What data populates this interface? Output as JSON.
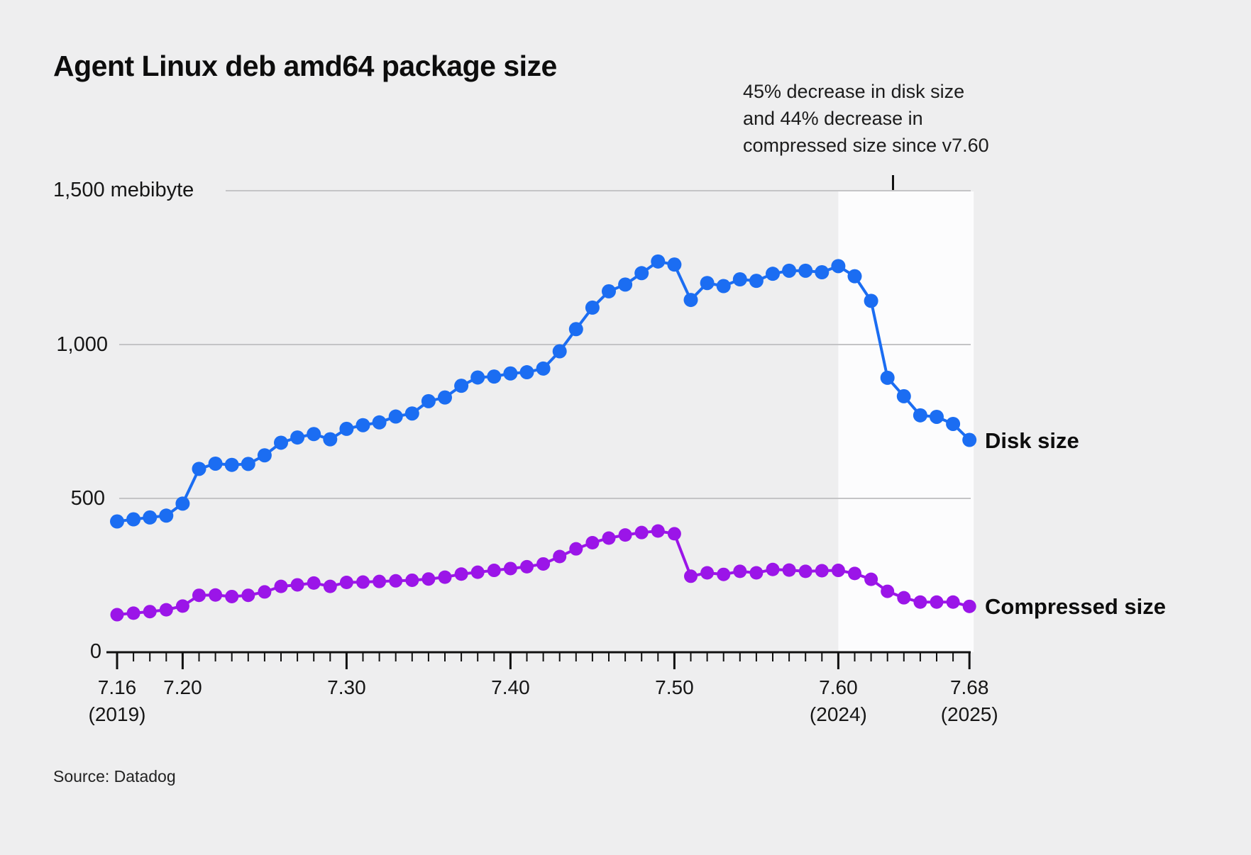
{
  "title": "Agent Linux deb amd64 package size",
  "annotation": {
    "text": "45% decrease in disk size\nand 44% decrease in\ncompressed size since v7.60"
  },
  "source": "Source: Datadog",
  "y_axis": {
    "labels": [
      {
        "value": 1500,
        "text": "1,500 mebibyte"
      },
      {
        "value": 1000,
        "text": "1,000"
      },
      {
        "value": 500,
        "text": "500"
      },
      {
        "value": 0,
        "text": "0"
      }
    ]
  },
  "x_axis": {
    "major_ticks": [
      {
        "version": "7.16",
        "year": "(2019)"
      },
      {
        "version": "7.20",
        "year": ""
      },
      {
        "version": "7.30",
        "year": ""
      },
      {
        "version": "7.40",
        "year": ""
      },
      {
        "version": "7.50",
        "year": ""
      },
      {
        "version": "7.60",
        "year": "(2024)"
      },
      {
        "version": "7.68",
        "year": "(2025)"
      }
    ]
  },
  "legend": {
    "disk": "Disk size",
    "compressed": "Compressed size"
  },
  "colors": {
    "background": "#eeeeef",
    "disk_line": "#1b6df2",
    "compressed_line": "#9b15e8",
    "gridline": "#c4c4c6",
    "axis": "#111111",
    "highlight_band": "#fcfcfd",
    "text": "#161616"
  },
  "chart_data": {
    "type": "line",
    "title": "Agent Linux deb amd64 package size",
    "ylabel": "mebibyte",
    "ylim": [
      0,
      1500
    ],
    "grid": "horizontal",
    "legend_position": "right-of-line-ends",
    "highlight_region": {
      "from": "7.60",
      "to": "7.68"
    },
    "x": [
      "7.16",
      "7.17",
      "7.18",
      "7.19",
      "7.20",
      "7.21",
      "7.22",
      "7.23",
      "7.24",
      "7.25",
      "7.26",
      "7.27",
      "7.28",
      "7.29",
      "7.30",
      "7.31",
      "7.32",
      "7.33",
      "7.34",
      "7.35",
      "7.36",
      "7.37",
      "7.38",
      "7.39",
      "7.40",
      "7.41",
      "7.42",
      "7.43",
      "7.44",
      "7.45",
      "7.46",
      "7.47",
      "7.48",
      "7.49",
      "7.50",
      "7.51",
      "7.52",
      "7.53",
      "7.54",
      "7.55",
      "7.56",
      "7.57",
      "7.58",
      "7.59",
      "7.60",
      "7.61",
      "7.62",
      "7.63",
      "7.64",
      "7.65",
      "7.66",
      "7.67",
      "7.68"
    ],
    "series": [
      {
        "name": "Disk size",
        "color": "#1b6df2",
        "values": [
          425,
          432,
          438,
          444,
          483,
          596,
          613,
          609,
          612,
          640,
          681,
          698,
          709,
          692,
          726,
          738,
          747,
          766,
          776,
          816,
          828,
          866,
          893,
          896,
          906,
          910,
          922,
          978,
          1050,
          1120,
          1173,
          1195,
          1232,
          1270,
          1260,
          1145,
          1200,
          1190,
          1212,
          1207,
          1230,
          1240,
          1240,
          1235,
          1255,
          1222,
          1142,
          892,
          832,
          770,
          765,
          742,
          690
        ]
      },
      {
        "name": "Compressed size",
        "color": "#9b15e8",
        "values": [
          122,
          127,
          132,
          138,
          150,
          185,
          186,
          181,
          185,
          196,
          214,
          219,
          225,
          214,
          227,
          228,
          230,
          232,
          234,
          238,
          244,
          254,
          260,
          266,
          272,
          278,
          287,
          311,
          336,
          356,
          371,
          381,
          389,
          394,
          385,
          247,
          258,
          253,
          263,
          258,
          269,
          267,
          263,
          265,
          266,
          256,
          237,
          198,
          177,
          163,
          163,
          163,
          149
        ]
      }
    ]
  }
}
